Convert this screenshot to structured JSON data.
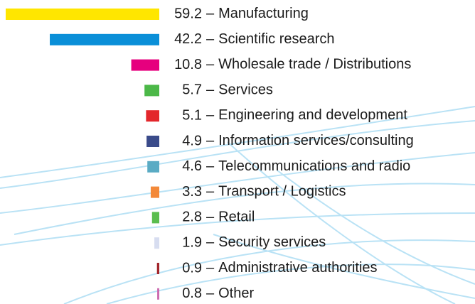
{
  "chart_data": {
    "type": "bar",
    "orientation": "horizontal",
    "label_separator": "–",
    "categories": [
      "Manufacturing",
      "Scientific research",
      "Wholesale trade / Distributions",
      "Services",
      "Engineering and development",
      "Information services/consulting",
      "Telecommunications and radio",
      "Transport / Logistics",
      "Retail",
      "Security services",
      "Administrative authorities",
      "Other"
    ],
    "values": [
      59.2,
      42.2,
      10.8,
      5.7,
      5.1,
      4.9,
      4.6,
      3.3,
      2.8,
      1.9,
      0.9,
      0.8
    ],
    "colors": [
      "#ffe600",
      "#0a8fd8",
      "#e6007e",
      "#4cb848",
      "#e3262b",
      "#3a4b8a",
      "#5aabc4",
      "#f3893a",
      "#5bbd4e",
      "#d7ddf0",
      "#a3262c",
      "#cc6ab0"
    ]
  }
}
